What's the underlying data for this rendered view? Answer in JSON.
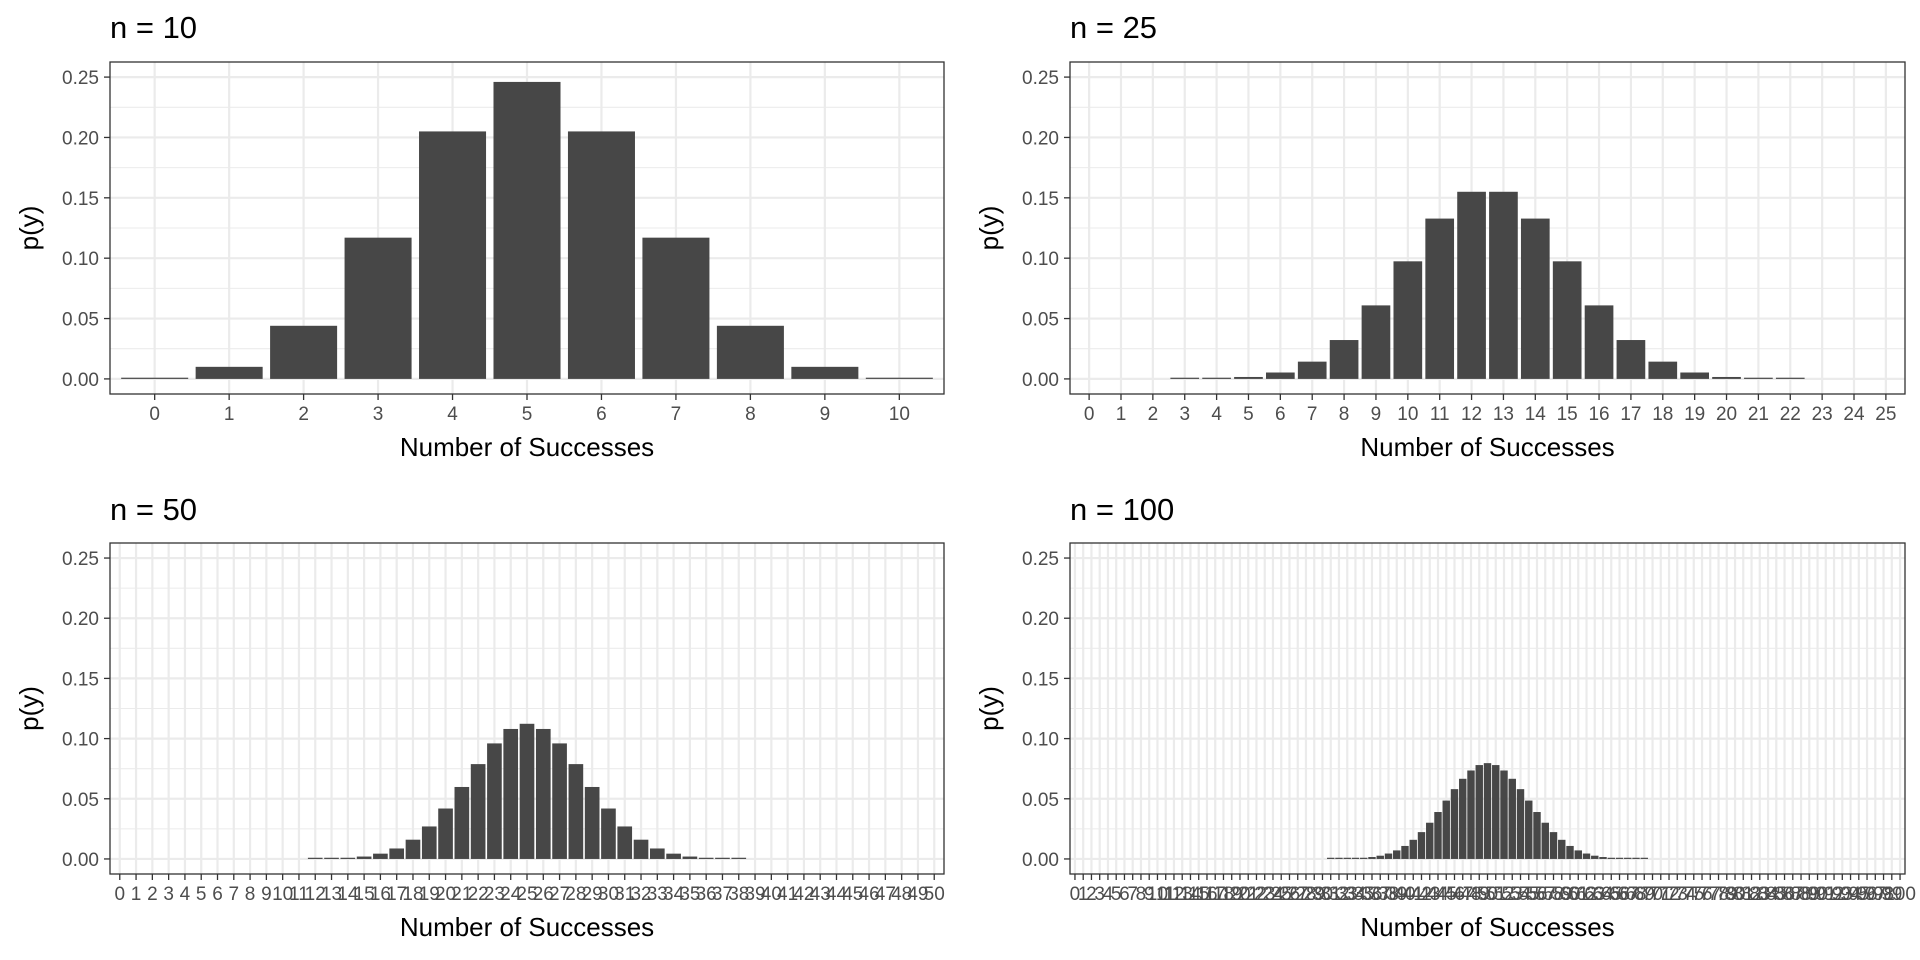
{
  "chart_data": [
    {
      "type": "bar",
      "title": "n = 10",
      "xlabel": "Number of Successes",
      "ylabel": "p(y)",
      "ylim": [
        0,
        0.25
      ],
      "yticks": [
        "0.00",
        "0.05",
        "0.10",
        "0.15",
        "0.20",
        "0.25"
      ],
      "grid": true,
      "bar_color": "#474747",
      "categories": [
        "0",
        "1",
        "2",
        "3",
        "4",
        "5",
        "6",
        "7",
        "8",
        "9",
        "10"
      ],
      "values": [
        0.001,
        0.01,
        0.044,
        0.117,
        0.205,
        0.246,
        0.205,
        0.117,
        0.044,
        0.01,
        0.001
      ]
    },
    {
      "type": "bar",
      "title": "n = 25",
      "xlabel": "Number of Successes",
      "ylabel": "p(y)",
      "ylim": [
        0,
        0.25
      ],
      "yticks": [
        "0.00",
        "0.05",
        "0.10",
        "0.15",
        "0.20",
        "0.25"
      ],
      "grid": true,
      "bar_color": "#474747",
      "categories": [
        "0",
        "1",
        "2",
        "3",
        "4",
        "5",
        "6",
        "7",
        "8",
        "9",
        "10",
        "11",
        "12",
        "13",
        "14",
        "15",
        "16",
        "17",
        "18",
        "19",
        "20",
        "21",
        "22",
        "23",
        "24",
        "25"
      ],
      "values": [
        0,
        0,
        0,
        0.0001,
        0.0004,
        0.0016,
        0.0053,
        0.0143,
        0.0322,
        0.0609,
        0.0974,
        0.1328,
        0.155,
        0.155,
        0.1328,
        0.0974,
        0.0609,
        0.0322,
        0.0143,
        0.0053,
        0.0016,
        0.0004,
        0.0001,
        0,
        0,
        0
      ]
    },
    {
      "type": "bar",
      "title": "n = 50",
      "xlabel": "Number of Successes",
      "ylabel": "p(y)",
      "ylim": [
        0,
        0.25
      ],
      "yticks": [
        "0.00",
        "0.05",
        "0.10",
        "0.15",
        "0.20",
        "0.25"
      ],
      "grid": true,
      "bar_color": "#474747",
      "categories": [
        "0",
        "1",
        "2",
        "3",
        "4",
        "5",
        "6",
        "7",
        "8",
        "9",
        "10",
        "11",
        "12",
        "13",
        "14",
        "15",
        "16",
        "17",
        "18",
        "19",
        "20",
        "21",
        "22",
        "23",
        "24",
        "25",
        "26",
        "27",
        "28",
        "29",
        "30",
        "31",
        "32",
        "33",
        "34",
        "35",
        "36",
        "37",
        "38",
        "39",
        "40",
        "41",
        "42",
        "43",
        "44",
        "45",
        "46",
        "47",
        "48",
        "49",
        "50"
      ],
      "values": [
        0,
        0,
        0,
        0,
        0,
        0,
        0,
        0,
        0,
        0,
        0,
        0,
        0.0001,
        0.0003,
        0.0008,
        0.002,
        0.0044,
        0.0087,
        0.016,
        0.027,
        0.0419,
        0.0598,
        0.0788,
        0.096,
        0.108,
        0.1123,
        0.108,
        0.096,
        0.0788,
        0.0598,
        0.0419,
        0.027,
        0.016,
        0.0087,
        0.0044,
        0.002,
        0.0008,
        0.0003,
        0.0001,
        0,
        0,
        0,
        0,
        0,
        0,
        0,
        0,
        0,
        0,
        0,
        0
      ]
    },
    {
      "type": "bar",
      "title": "n = 100",
      "xlabel": "Number of Successes",
      "ylabel": "p(y)",
      "ylim": [
        0,
        0.25
      ],
      "yticks": [
        "0.00",
        "0.05",
        "0.10",
        "0.15",
        "0.20",
        "0.25"
      ],
      "grid": true,
      "bar_color": "#474747",
      "categories": [
        "0",
        "1",
        "2",
        "3",
        "4",
        "5",
        "6",
        "7",
        "8",
        "9",
        "10",
        "11",
        "12",
        "13",
        "14",
        "15",
        "16",
        "17",
        "18",
        "19",
        "20",
        "21",
        "22",
        "23",
        "24",
        "25",
        "26",
        "27",
        "28",
        "29",
        "30",
        "31",
        "32",
        "33",
        "34",
        "35",
        "36",
        "37",
        "38",
        "39",
        "40",
        "41",
        "42",
        "43",
        "44",
        "45",
        "46",
        "47",
        "48",
        "49",
        "50",
        "51",
        "52",
        "53",
        "54",
        "55",
        "56",
        "57",
        "58",
        "59",
        "60",
        "61",
        "62",
        "63",
        "64",
        "65",
        "66",
        "67",
        "68",
        "69",
        "70",
        "71",
        "72",
        "73",
        "74",
        "75",
        "76",
        "77",
        "78",
        "79",
        "80",
        "81",
        "82",
        "83",
        "84",
        "85",
        "86",
        "87",
        "88",
        "89",
        "90",
        "91",
        "92",
        "93",
        "94",
        "95",
        "96",
        "97",
        "98",
        "99",
        "100"
      ],
      "values": [
        0,
        0,
        0,
        0,
        0,
        0,
        0,
        0,
        0,
        0,
        0,
        0,
        0,
        0,
        0,
        0,
        0,
        0,
        0,
        0,
        0,
        0,
        0,
        0,
        0,
        0,
        0,
        0,
        0,
        0,
        0,
        0.0001,
        0.0002,
        0.0004,
        0.0007,
        0.0009,
        0.0016,
        0.0027,
        0.0045,
        0.0071,
        0.0108,
        0.0159,
        0.0223,
        0.0301,
        0.039,
        0.0485,
        0.058,
        0.0666,
        0.0735,
        0.078,
        0.0796,
        0.078,
        0.0735,
        0.0666,
        0.058,
        0.0485,
        0.039,
        0.0301,
        0.0223,
        0.0159,
        0.0108,
        0.0071,
        0.0045,
        0.0027,
        0.0016,
        0.0009,
        0.0007,
        0.0004,
        0.0002,
        0.0001,
        0,
        0,
        0,
        0,
        0,
        0,
        0,
        0,
        0,
        0,
        0,
        0,
        0,
        0,
        0,
        0,
        0,
        0,
        0,
        0,
        0,
        0,
        0,
        0,
        0,
        0,
        0,
        0,
        0,
        0,
        0
      ]
    }
  ]
}
